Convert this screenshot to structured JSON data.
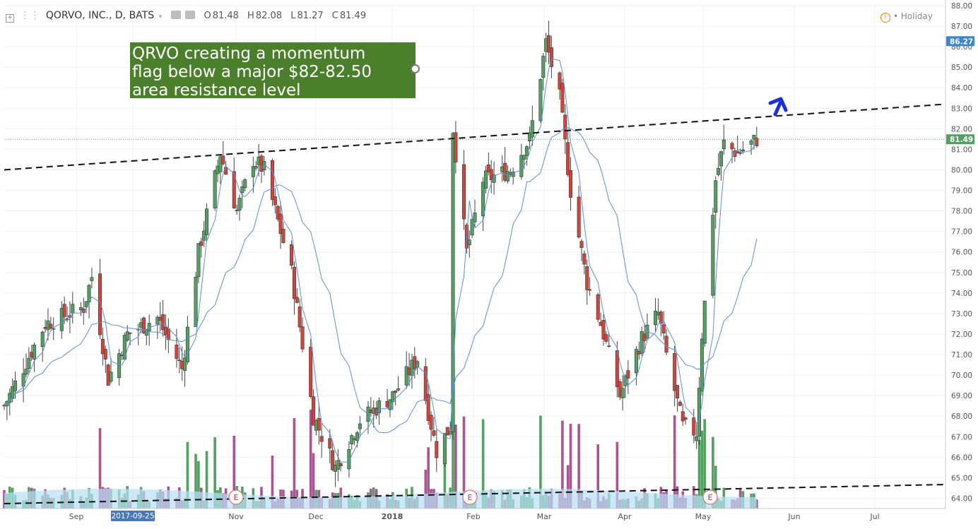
{
  "header": {
    "symbol": "QORVO, INC., D, BATS",
    "open_label": "O",
    "open": "81.48",
    "high_label": "H",
    "high": "82.08",
    "low_label": "L",
    "low": "81.27",
    "close_label": "C",
    "close": "81.49",
    "holiday": "Holiday"
  },
  "annotation": {
    "lines": [
      "QRVO creating a momentum",
      "flag below a major $82-82.50",
      "area resistance level"
    ],
    "color": "#4b7f2c"
  },
  "colors": {
    "up": "#53a062",
    "down": "#d0463c",
    "ma": "#5b8fd6",
    "vol_up": "#53a062",
    "vol_down": "#a85591",
    "vol_area": "#b8e0f5",
    "trendline": "#111111",
    "arrow": "#1a2fd6",
    "price_tag": "#3d86c9",
    "price_tag_current": "#53a062"
  },
  "chart_data": {
    "type": "candlestick",
    "title": "QORVO, INC., D, BATS",
    "ylim": [
      63.5,
      88.0
    ],
    "y_ticks": [
      "64.00",
      "65.00",
      "66.00",
      "67.00",
      "68.00",
      "69.00",
      "70.00",
      "71.00",
      "72.00",
      "73.00",
      "74.00",
      "75.00",
      "76.00",
      "77.00",
      "78.00",
      "79.00",
      "80.00",
      "81.00",
      "82.00",
      "83.00",
      "84.00",
      "85.00",
      "86.00",
      "87.00",
      "88.00"
    ],
    "x_labels": [
      "Sep",
      "2017-09-25",
      "Nov",
      "Dec",
      "2018",
      "Feb",
      "Mar",
      "Apr",
      "May",
      "Jun",
      "Jul"
    ],
    "price_tags": [
      {
        "value": "86.27"
      },
      {
        "value": "81.49"
      }
    ],
    "earnings_markers": [
      "E",
      "E",
      "E"
    ],
    "trendlines": [
      {
        "name": "resistance",
        "from": [
          "2017-08-21",
          80.0
        ],
        "to": [
          "2018-07-31",
          83.2
        ]
      },
      {
        "name": "volume-base",
        "from": [
          "2017-08-21",
          64.0
        ],
        "to": [
          "2018-07-31",
          64.45
        ]
      }
    ],
    "ohlc_keyframes": [
      [
        "2017-08-21",
        68.5
      ],
      [
        "2017-09-05",
        72.5
      ],
      [
        "2017-09-19",
        73.3
      ],
      [
        "2017-09-22",
        74.8
      ],
      [
        "2017-09-28",
        69.8
      ],
      [
        "2017-10-05",
        72.0
      ],
      [
        "2017-10-16",
        72.8
      ],
      [
        "2017-10-25",
        70.3
      ],
      [
        "2017-10-31",
        76.0
      ],
      [
        "2017-11-08",
        80.8
      ],
      [
        "2017-11-14",
        78.0
      ],
      [
        "2017-11-20",
        80.5
      ],
      [
        "2017-11-24",
        80.0
      ],
      [
        "2017-12-04",
        75.0
      ],
      [
        "2017-12-12",
        68.0
      ],
      [
        "2017-12-20",
        65.5
      ],
      [
        "2017-12-29",
        67.8
      ],
      [
        "2018-01-10",
        69.0
      ],
      [
        "2018-01-19",
        70.8
      ],
      [
        "2018-01-26",
        66.3
      ],
      [
        "2018-01-31",
        67.5
      ],
      [
        "2018-02-01",
        82.0
      ],
      [
        "2018-02-06",
        76.0
      ],
      [
        "2018-02-12",
        79.5
      ],
      [
        "2018-02-22",
        80.0
      ],
      [
        "2018-03-01",
        81.5
      ],
      [
        "2018-03-07",
        86.2
      ],
      [
        "2018-03-12",
        83.5
      ],
      [
        "2018-03-16",
        79.0
      ],
      [
        "2018-03-22",
        74.5
      ],
      [
        "2018-03-27",
        72.5
      ],
      [
        "2018-04-03",
        69.0
      ],
      [
        "2018-04-11",
        71.8
      ],
      [
        "2018-04-17",
        73.0
      ],
      [
        "2018-04-20",
        71.0
      ],
      [
        "2018-04-26",
        67.5
      ],
      [
        "2018-05-01",
        67.2
      ],
      [
        "2018-05-03",
        72.0
      ],
      [
        "2018-05-08",
        79.5
      ],
      [
        "2018-05-11",
        81.3
      ],
      [
        "2018-05-16",
        80.8
      ],
      [
        "2018-05-23",
        81.49
      ]
    ]
  }
}
